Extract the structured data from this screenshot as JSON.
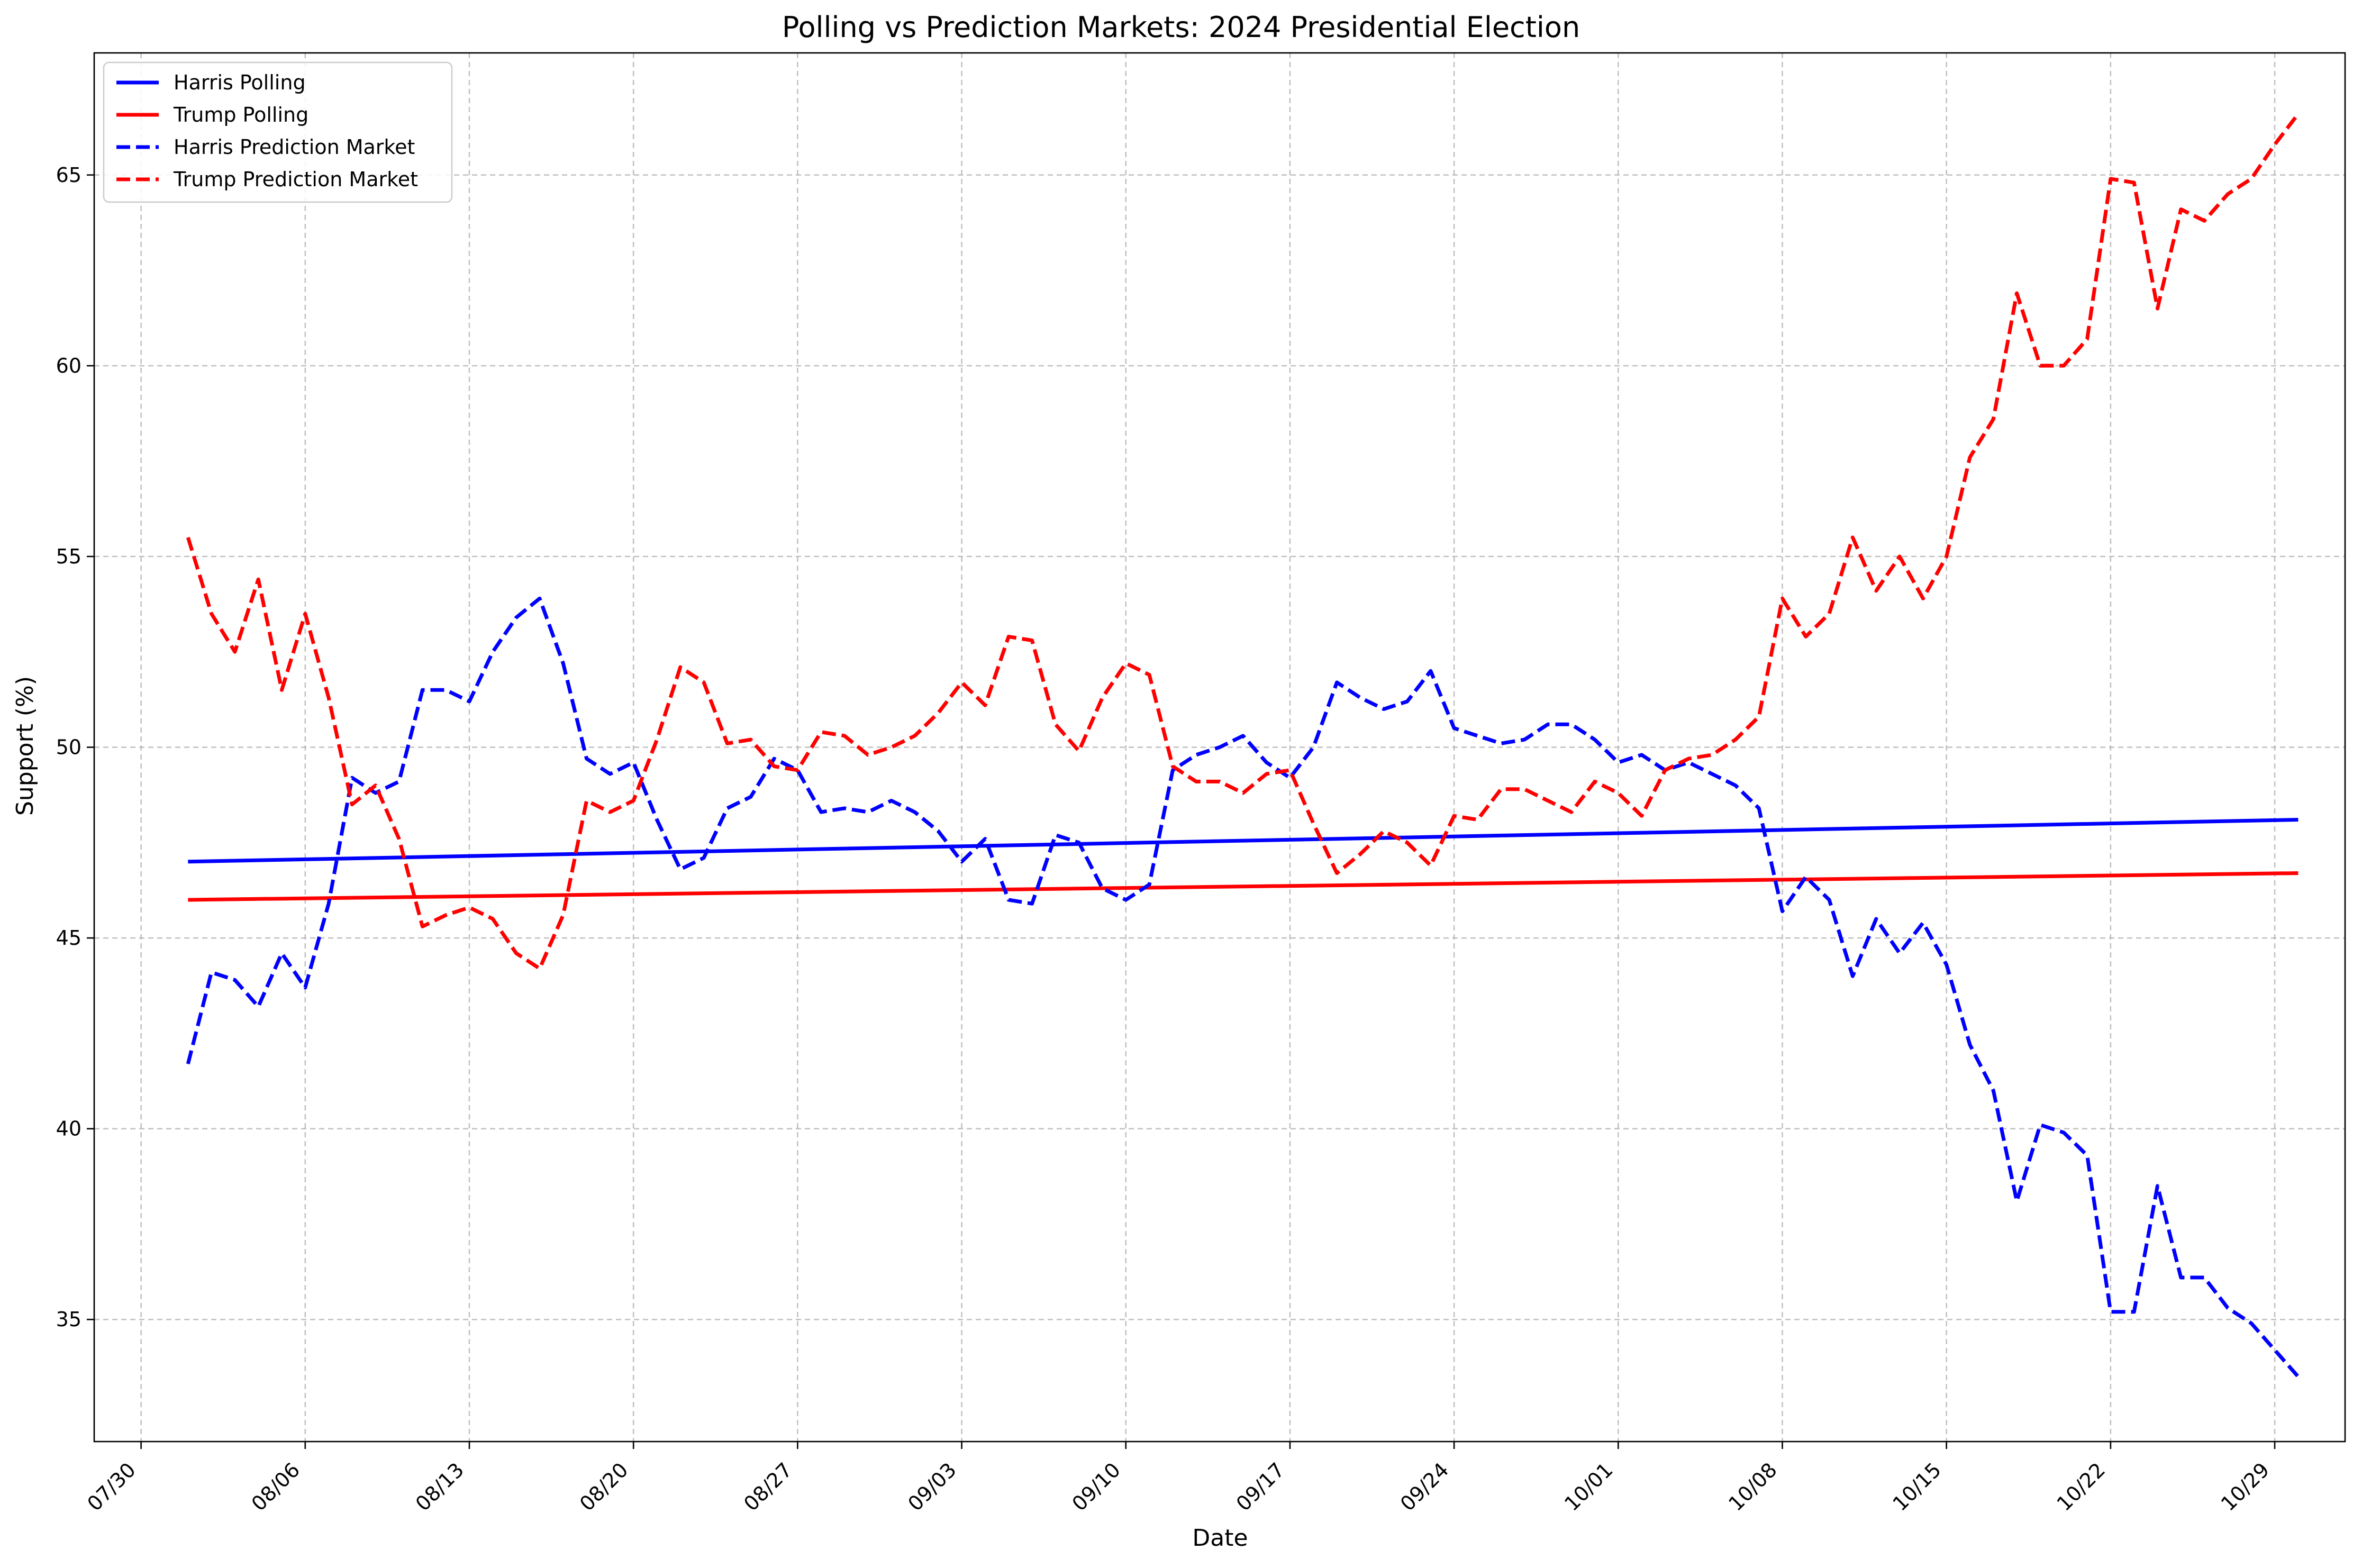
{
  "chart_data": {
    "type": "line",
    "title": "Polling vs Prediction Markets: 2024 Presidential Election",
    "xlabel": "Date",
    "ylabel": "Support (%)",
    "xlim": [
      "2024-07-28",
      "2024-11-01"
    ],
    "ylim": [
      31.8,
      68.2
    ],
    "grid": true,
    "legend_position": "top-left",
    "x_ticks": [
      "07/30",
      "08/06",
      "08/13",
      "08/20",
      "08/27",
      "09/03",
      "09/10",
      "09/17",
      "09/24",
      "10/01",
      "10/08",
      "10/15",
      "10/22",
      "10/29"
    ],
    "x_tick_dates": [
      "2024-07-30",
      "2024-08-06",
      "2024-08-13",
      "2024-08-20",
      "2024-08-27",
      "2024-09-03",
      "2024-09-10",
      "2024-09-17",
      "2024-09-24",
      "2024-10-01",
      "2024-10-08",
      "2024-10-15",
      "2024-10-22",
      "2024-10-29"
    ],
    "y_ticks": [
      35,
      40,
      45,
      50,
      55,
      60,
      65
    ],
    "series": [
      {
        "name": "Harris Polling",
        "color": "#0000ff",
        "style": "solid",
        "x": [
          "2024-08-01",
          "2024-10-30"
        ],
        "y": [
          47.0,
          48.1
        ]
      },
      {
        "name": "Trump Polling",
        "color": "#ff0000",
        "style": "solid",
        "x": [
          "2024-08-01",
          "2024-10-30"
        ],
        "y": [
          46.0,
          46.7
        ]
      },
      {
        "name": "Harris Prediction Market",
        "color": "#0000ff",
        "style": "dashed",
        "x": [
          "2024-08-01",
          "2024-08-02",
          "2024-08-03",
          "2024-08-04",
          "2024-08-05",
          "2024-08-06",
          "2024-08-07",
          "2024-08-08",
          "2024-08-09",
          "2024-08-10",
          "2024-08-11",
          "2024-08-12",
          "2024-08-13",
          "2024-08-14",
          "2024-08-15",
          "2024-08-16",
          "2024-08-17",
          "2024-08-18",
          "2024-08-19",
          "2024-08-20",
          "2024-08-21",
          "2024-08-22",
          "2024-08-23",
          "2024-08-24",
          "2024-08-25",
          "2024-08-26",
          "2024-08-27",
          "2024-08-28",
          "2024-08-29",
          "2024-08-30",
          "2024-08-31",
          "2024-09-01",
          "2024-09-02",
          "2024-09-03",
          "2024-09-04",
          "2024-09-05",
          "2024-09-06",
          "2024-09-07",
          "2024-09-08",
          "2024-09-09",
          "2024-09-10",
          "2024-09-11",
          "2024-09-12",
          "2024-09-13",
          "2024-09-14",
          "2024-09-15",
          "2024-09-16",
          "2024-09-17",
          "2024-09-18",
          "2024-09-19",
          "2024-09-20",
          "2024-09-21",
          "2024-09-22",
          "2024-09-23",
          "2024-09-24",
          "2024-09-25",
          "2024-09-26",
          "2024-09-27",
          "2024-09-28",
          "2024-09-29",
          "2024-09-30",
          "2024-10-01",
          "2024-10-02",
          "2024-10-03",
          "2024-10-04",
          "2024-10-05",
          "2024-10-06",
          "2024-10-07",
          "2024-10-08",
          "2024-10-09",
          "2024-10-10",
          "2024-10-11",
          "2024-10-12",
          "2024-10-13",
          "2024-10-14",
          "2024-10-15",
          "2024-10-16",
          "2024-10-17",
          "2024-10-18",
          "2024-10-19",
          "2024-10-20",
          "2024-10-21",
          "2024-10-22",
          "2024-10-23",
          "2024-10-24",
          "2024-10-25",
          "2024-10-26",
          "2024-10-27",
          "2024-10-28",
          "2024-10-29",
          "2024-10-30"
        ],
        "y": [
          41.7,
          44.1,
          43.9,
          43.2,
          44.6,
          43.7,
          45.9,
          49.2,
          48.8,
          49.1,
          51.5,
          51.5,
          51.2,
          52.5,
          53.4,
          53.9,
          52.2,
          49.7,
          49.3,
          49.6,
          48.1,
          46.8,
          47.1,
          48.4,
          48.7,
          49.7,
          49.4,
          48.3,
          48.4,
          48.3,
          48.6,
          48.3,
          47.8,
          47.0,
          47.6,
          46.0,
          45.9,
          47.7,
          47.5,
          46.3,
          46.0,
          46.4,
          49.4,
          49.8,
          50.0,
          50.3,
          49.6,
          49.2,
          50.0,
          51.7,
          51.3,
          51.0,
          51.2,
          52.0,
          50.5,
          50.3,
          50.1,
          50.2,
          50.6,
          50.6,
          50.2,
          49.6,
          49.8,
          49.4,
          49.6,
          49.3,
          49.0,
          48.4,
          45.7,
          46.6,
          46.0,
          44.0,
          45.5,
          44.6,
          45.4,
          44.3,
          42.2,
          41.0,
          38.1,
          40.1,
          39.9,
          39.3,
          35.2,
          35.2,
          38.5,
          36.1,
          36.1,
          35.3,
          34.9,
          34.2,
          33.5
        ]
      },
      {
        "name": "Trump Prediction Market",
        "color": "#ff0000",
        "style": "dashed",
        "x": [
          "2024-08-01",
          "2024-08-02",
          "2024-08-03",
          "2024-08-04",
          "2024-08-05",
          "2024-08-06",
          "2024-08-07",
          "2024-08-08",
          "2024-08-09",
          "2024-08-10",
          "2024-08-11",
          "2024-08-12",
          "2024-08-13",
          "2024-08-14",
          "2024-08-15",
          "2024-08-16",
          "2024-08-17",
          "2024-08-18",
          "2024-08-19",
          "2024-08-20",
          "2024-08-21",
          "2024-08-22",
          "2024-08-23",
          "2024-08-24",
          "2024-08-25",
          "2024-08-26",
          "2024-08-27",
          "2024-08-28",
          "2024-08-29",
          "2024-08-30",
          "2024-08-31",
          "2024-09-01",
          "2024-09-02",
          "2024-09-03",
          "2024-09-04",
          "2024-09-05",
          "2024-09-06",
          "2024-09-07",
          "2024-09-08",
          "2024-09-09",
          "2024-09-10",
          "2024-09-11",
          "2024-09-12",
          "2024-09-13",
          "2024-09-14",
          "2024-09-15",
          "2024-09-16",
          "2024-09-17",
          "2024-09-18",
          "2024-09-19",
          "2024-09-20",
          "2024-09-21",
          "2024-09-22",
          "2024-09-23",
          "2024-09-24",
          "2024-09-25",
          "2024-09-26",
          "2024-09-27",
          "2024-09-28",
          "2024-09-29",
          "2024-09-30",
          "2024-10-01",
          "2024-10-02",
          "2024-10-03",
          "2024-10-04",
          "2024-10-05",
          "2024-10-06",
          "2024-10-07",
          "2024-10-08",
          "2024-10-09",
          "2024-10-10",
          "2024-10-11",
          "2024-10-12",
          "2024-10-13",
          "2024-10-14",
          "2024-10-15",
          "2024-10-16",
          "2024-10-17",
          "2024-10-18",
          "2024-10-19",
          "2024-10-20",
          "2024-10-21",
          "2024-10-22",
          "2024-10-23",
          "2024-10-24",
          "2024-10-25",
          "2024-10-26",
          "2024-10-27",
          "2024-10-28",
          "2024-10-29",
          "2024-10-30"
        ],
        "y": [
          55.5,
          53.5,
          52.5,
          54.4,
          51.5,
          53.5,
          51.3,
          48.5,
          49.0,
          47.6,
          45.3,
          45.6,
          45.8,
          45.5,
          44.6,
          44.2,
          45.6,
          48.6,
          48.3,
          48.6,
          50.2,
          52.1,
          51.7,
          50.1,
          50.2,
          49.5,
          49.4,
          50.4,
          50.3,
          49.8,
          50.0,
          50.3,
          50.9,
          51.7,
          51.1,
          52.9,
          52.8,
          50.6,
          49.9,
          51.3,
          52.2,
          51.9,
          49.5,
          49.1,
          49.1,
          48.8,
          49.3,
          49.4,
          48.0,
          46.7,
          47.2,
          47.8,
          47.5,
          46.9,
          48.2,
          48.1,
          48.9,
          48.9,
          48.6,
          48.3,
          49.1,
          48.8,
          48.2,
          49.4,
          49.7,
          49.8,
          50.2,
          50.8,
          53.9,
          52.9,
          53.5,
          55.5,
          54.1,
          55.0,
          53.9,
          55.0,
          57.6,
          58.6,
          61.9,
          60.0,
          60.0,
          60.7,
          64.9,
          64.8,
          61.5,
          64.1,
          63.8,
          64.5,
          64.9,
          65.8,
          66.6
        ]
      }
    ]
  }
}
